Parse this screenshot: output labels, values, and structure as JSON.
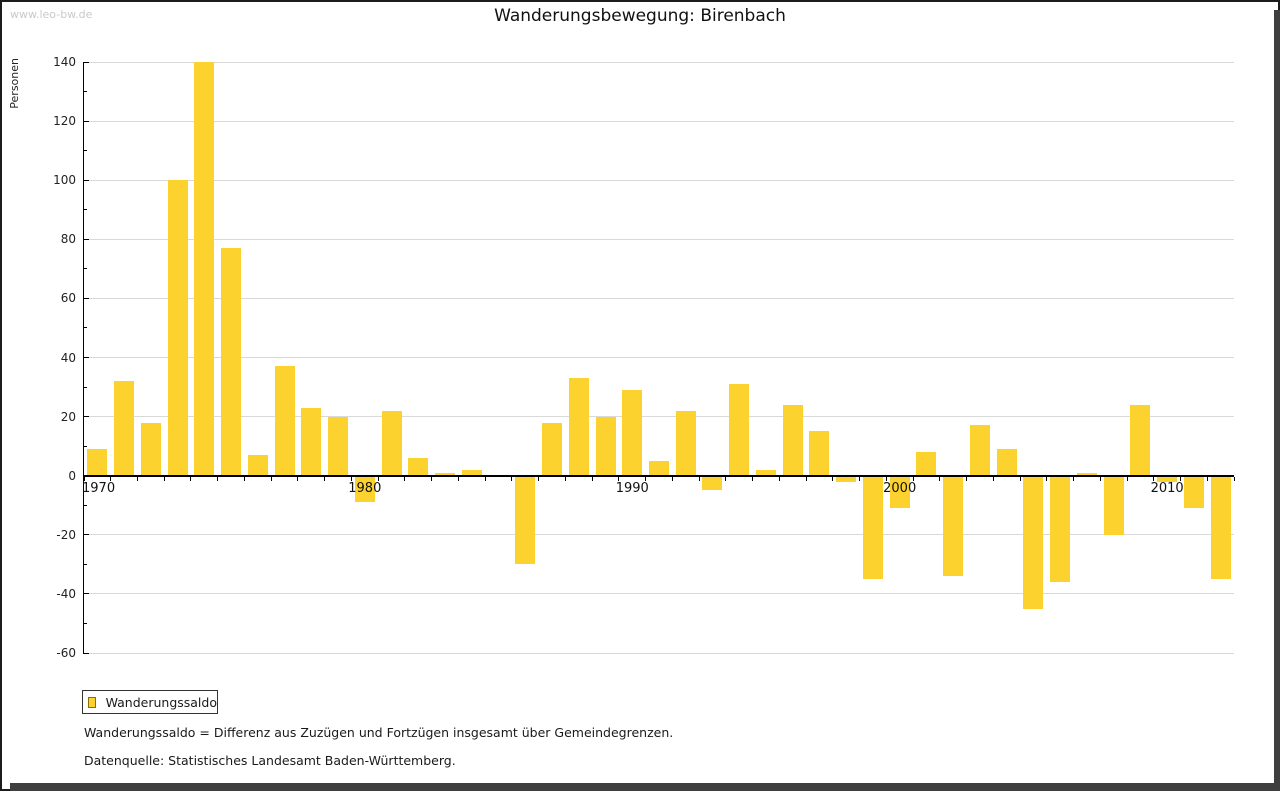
{
  "watermark": "www.leo-bw.de",
  "title": "Wanderungsbewegung: Birenbach",
  "legend": {
    "label": "Wanderungssaldo"
  },
  "footnotes": {
    "definition": "Wanderungssaldo = Differenz aus Zuzügen und Fortzügen insgesamt über Gemeindegrenzen.",
    "source": "Datenquelle: Statistisches Landesamt Baden-Württemberg."
  },
  "colors": {
    "bar": "#fcd22f",
    "grid": "#d9d9d9",
    "axis": "#000000",
    "watermark": "#c9c9c9",
    "shadow": "#3f3f3f",
    "legend_swatch_border": "#8a7000"
  },
  "chart_data": {
    "type": "bar",
    "title": "Wanderungsbewegung: Birenbach",
    "xlabel": "",
    "ylabel": "Personen",
    "series_name": "Wanderungssaldo",
    "ylim": [
      -60,
      140
    ],
    "ytick_step": 20,
    "yticks": [
      140,
      120,
      100,
      80,
      60,
      40,
      20,
      0,
      -20,
      -40,
      -60
    ],
    "x_major_ticks": [
      1970,
      1980,
      1990,
      2000,
      2010
    ],
    "grid": true,
    "legend_position": "bottom-left",
    "categories": [
      1970,
      1971,
      1972,
      1973,
      1974,
      1975,
      1976,
      1977,
      1978,
      1979,
      1980,
      1981,
      1982,
      1983,
      1984,
      1985,
      1986,
      1987,
      1988,
      1989,
      1990,
      1991,
      1992,
      1993,
      1994,
      1995,
      1996,
      1997,
      1998,
      1999,
      2000,
      2001,
      2002,
      2003,
      2004,
      2005,
      2006,
      2007,
      2008,
      2009,
      2010,
      2011,
      2012
    ],
    "values": [
      9,
      32,
      18,
      100,
      140,
      77,
      7,
      37,
      23,
      20,
      -9,
      22,
      6,
      1,
      2,
      0,
      -30,
      18,
      33,
      20,
      29,
      5,
      22,
      -5,
      31,
      2,
      24,
      15,
      -2,
      -35,
      -11,
      8,
      -34,
      17,
      9,
      -45,
      -36,
      1,
      -20,
      24,
      -2,
      -11,
      -35
    ]
  }
}
